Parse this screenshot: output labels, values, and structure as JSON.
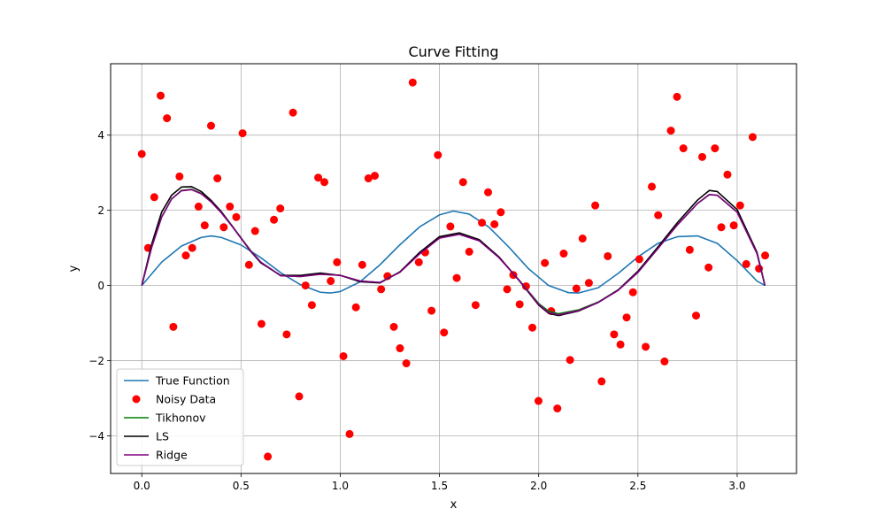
{
  "chart_data": {
    "type": "line",
    "title": "Curve Fitting",
    "xlabel": "x",
    "ylabel": "y",
    "xlim": [
      -0.157,
      3.299
    ],
    "ylim": [
      -5.0,
      5.9
    ],
    "xticks": [
      0.0,
      0.5,
      1.0,
      1.5,
      2.0,
      2.5,
      3.0
    ],
    "xtick_labels": [
      "0.0",
      "0.5",
      "1.0",
      "1.5",
      "2.0",
      "2.5",
      "3.0"
    ],
    "yticks": [
      -4,
      -2,
      0,
      2,
      4
    ],
    "ytick_labels": [
      "−4",
      "−2",
      "0",
      "2",
      "4"
    ],
    "grid": true,
    "legend_position": "lower-left",
    "series": [
      {
        "name": "True Function",
        "kind": "line",
        "color": "#1f77b4",
        "x": [
          0.0,
          0.1,
          0.2,
          0.3,
          0.35,
          0.4,
          0.5,
          0.6,
          0.7,
          0.8,
          0.9,
          0.95,
          1.0,
          1.1,
          1.2,
          1.3,
          1.4,
          1.5,
          1.57,
          1.65,
          1.75,
          1.85,
          1.95,
          2.05,
          2.15,
          2.2,
          2.3,
          2.4,
          2.5,
          2.6,
          2.7,
          2.8,
          2.9,
          3.0,
          3.1,
          3.14
        ],
        "y": [
          0.0,
          0.62,
          1.05,
          1.28,
          1.32,
          1.28,
          1.08,
          0.74,
          0.34,
          0.02,
          -0.18,
          -0.2,
          -0.16,
          0.1,
          0.55,
          1.08,
          1.56,
          1.88,
          1.98,
          1.9,
          1.55,
          1.02,
          0.44,
          0.0,
          -0.19,
          -0.2,
          -0.06,
          0.32,
          0.76,
          1.12,
          1.3,
          1.32,
          1.12,
          0.66,
          0.12,
          0.0
        ]
      },
      {
        "name": "Tikhonov",
        "kind": "line",
        "color": "#008000",
        "x": [
          0.0,
          0.05,
          0.1,
          0.15,
          0.2,
          0.25,
          0.3,
          0.35,
          0.4,
          0.45,
          0.5,
          0.55,
          0.6,
          0.7,
          0.8,
          0.9,
          1.0,
          1.1,
          1.2,
          1.3,
          1.4,
          1.5,
          1.6,
          1.7,
          1.8,
          1.9,
          2.0,
          2.05,
          2.1,
          2.2,
          2.3,
          2.4,
          2.5,
          2.6,
          2.7,
          2.8,
          2.86,
          2.9,
          3.0,
          3.1,
          3.14
        ],
        "y": [
          0.0,
          1.02,
          1.82,
          2.3,
          2.53,
          2.56,
          2.45,
          2.23,
          1.95,
          1.62,
          1.27,
          0.92,
          0.62,
          0.26,
          0.24,
          0.3,
          0.27,
          0.12,
          0.08,
          0.36,
          0.85,
          1.27,
          1.37,
          1.2,
          0.75,
          0.15,
          -0.48,
          -0.68,
          -0.75,
          -0.65,
          -0.44,
          -0.12,
          0.35,
          0.98,
          1.62,
          2.18,
          2.42,
          2.4,
          1.95,
          0.85,
          0.0
        ]
      },
      {
        "name": "LS",
        "kind": "line",
        "color": "#000000",
        "x": [
          0.0,
          0.05,
          0.1,
          0.15,
          0.2,
          0.25,
          0.3,
          0.35,
          0.4,
          0.45,
          0.5,
          0.55,
          0.6,
          0.7,
          0.8,
          0.9,
          1.0,
          1.1,
          1.2,
          1.3,
          1.4,
          1.5,
          1.6,
          1.7,
          1.8,
          1.9,
          2.0,
          2.05,
          2.1,
          2.2,
          2.3,
          2.4,
          2.5,
          2.6,
          2.7,
          2.8,
          2.86,
          2.9,
          3.0,
          3.1,
          3.14
        ],
        "y": [
          0.0,
          1.1,
          1.95,
          2.4,
          2.62,
          2.63,
          2.5,
          2.26,
          1.97,
          1.62,
          1.26,
          0.9,
          0.6,
          0.27,
          0.27,
          0.33,
          0.27,
          0.1,
          0.07,
          0.36,
          0.88,
          1.3,
          1.4,
          1.22,
          0.76,
          0.14,
          -0.52,
          -0.74,
          -0.8,
          -0.68,
          -0.45,
          -0.12,
          0.38,
          1.02,
          1.68,
          2.27,
          2.53,
          2.5,
          2.02,
          0.88,
          0.0
        ]
      },
      {
        "name": "Ridge",
        "kind": "line",
        "color": "#800080",
        "x": [
          0.0,
          0.05,
          0.1,
          0.15,
          0.2,
          0.25,
          0.3,
          0.35,
          0.4,
          0.45,
          0.5,
          0.55,
          0.6,
          0.7,
          0.8,
          0.9,
          1.0,
          1.1,
          1.2,
          1.3,
          1.4,
          1.5,
          1.6,
          1.7,
          1.8,
          1.9,
          2.0,
          2.05,
          2.1,
          2.2,
          2.3,
          2.4,
          2.5,
          2.6,
          2.7,
          2.8,
          2.86,
          2.9,
          3.0,
          3.1,
          3.14
        ],
        "y": [
          0.0,
          1.02,
          1.82,
          2.3,
          2.52,
          2.55,
          2.44,
          2.22,
          1.94,
          1.61,
          1.26,
          0.91,
          0.62,
          0.26,
          0.24,
          0.3,
          0.27,
          0.12,
          0.08,
          0.35,
          0.84,
          1.26,
          1.36,
          1.19,
          0.74,
          0.15,
          -0.5,
          -0.72,
          -0.78,
          -0.67,
          -0.45,
          -0.13,
          0.35,
          0.98,
          1.62,
          2.18,
          2.42,
          2.4,
          1.95,
          0.85,
          0.0
        ]
      },
      {
        "name": "Noisy Data",
        "kind": "scatter",
        "color": "#ff0000",
        "x": [
          0.0,
          0.032,
          0.063,
          0.095,
          0.127,
          0.159,
          0.19,
          0.222,
          0.254,
          0.286,
          0.317,
          0.349,
          0.381,
          0.413,
          0.444,
          0.476,
          0.508,
          0.54,
          0.571,
          0.603,
          0.635,
          0.666,
          0.698,
          0.73,
          0.762,
          0.793,
          0.825,
          0.857,
          0.889,
          0.92,
          0.952,
          0.984,
          1.016,
          1.047,
          1.079,
          1.111,
          1.142,
          1.174,
          1.206,
          1.238,
          1.27,
          1.301,
          1.333,
          1.365,
          1.396,
          1.428,
          1.46,
          1.492,
          1.523,
          1.555,
          1.587,
          1.619,
          1.65,
          1.682,
          1.714,
          1.745,
          1.777,
          1.809,
          1.841,
          1.872,
          1.904,
          1.936,
          1.968,
          1.999,
          2.031,
          2.063,
          2.094,
          2.126,
          2.158,
          2.19,
          2.221,
          2.253,
          2.285,
          2.317,
          2.348,
          2.38,
          2.412,
          2.443,
          2.475,
          2.507,
          2.539,
          2.57,
          2.602,
          2.634,
          2.666,
          2.697,
          2.729,
          2.761,
          2.793,
          2.824,
          2.856,
          2.888,
          2.92,
          2.951,
          2.983,
          3.015,
          3.046,
          3.078,
          3.11,
          3.141
        ],
        "y": [
          3.5,
          1.0,
          2.35,
          5.05,
          4.45,
          -1.1,
          2.9,
          0.8,
          1.0,
          2.1,
          1.6,
          4.25,
          2.85,
          1.55,
          2.1,
          1.82,
          4.05,
          0.55,
          1.45,
          -1.02,
          -4.55,
          1.75,
          2.05,
          -1.3,
          4.6,
          -2.95,
          0.0,
          -0.52,
          2.87,
          2.75,
          0.12,
          0.62,
          -1.88,
          -3.95,
          -0.58,
          0.55,
          2.85,
          2.92,
          -0.1,
          0.25,
          -1.1,
          -1.67,
          -2.07,
          5.4,
          0.62,
          0.88,
          -0.67,
          3.47,
          -1.25,
          1.57,
          0.2,
          2.75,
          0.9,
          -0.52,
          1.67,
          2.48,
          1.63,
          1.95,
          -0.1,
          0.28,
          -0.5,
          -0.02,
          -1.12,
          -3.07,
          0.6,
          -0.68,
          -3.27,
          0.85,
          -1.98,
          -0.08,
          1.25,
          0.07,
          2.13,
          -2.55,
          0.78,
          -1.3,
          -1.57,
          -0.85,
          -0.18,
          0.7,
          -1.63,
          2.63,
          1.87,
          -2.02,
          4.12,
          5.02,
          3.65,
          0.95,
          -0.8,
          3.42,
          0.48,
          3.65,
          1.55,
          2.95,
          1.6,
          2.13,
          0.57,
          3.95,
          0.45,
          0.8
        ]
      }
    ]
  }
}
